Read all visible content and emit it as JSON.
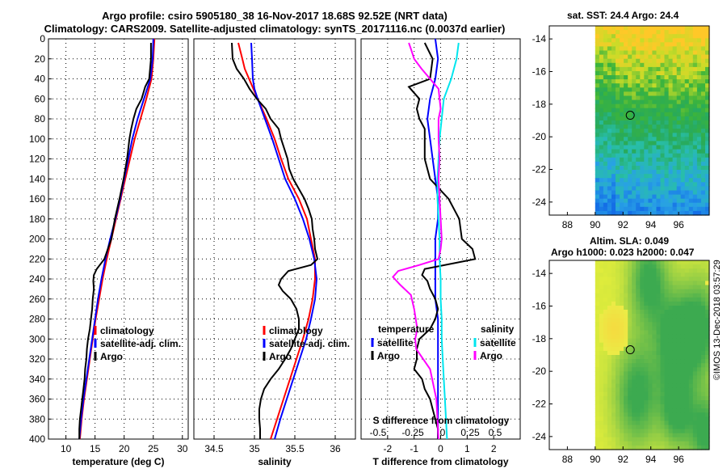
{
  "title": {
    "line1": "Argo profile: csiro 5905180_38 16-Nov-2017 18.68S 92.52E (NRT data)",
    "line2": "Climatology: CARS2009. Satellite-adjusted climatology: synTS_20171116.nc (0.0037d earlier)"
  },
  "colors": {
    "climatology": "#ff0000",
    "satellite": "#0000ff",
    "argo": "#000000",
    "argo_salinity_diff": "#ff00ff",
    "satellite_salinity_diff": "#00e5ee"
  },
  "chart_data": [
    {
      "type": "line",
      "id": "temperature",
      "xlabel": "temperature (deg C)",
      "ylabel": "",
      "xlim": [
        7,
        31
      ],
      "ylim": [
        400,
        0
      ],
      "xticks": [
        10,
        15,
        20,
        25,
        30
      ],
      "yticks": [
        0,
        20,
        40,
        60,
        80,
        100,
        120,
        140,
        160,
        180,
        200,
        220,
        240,
        260,
        280,
        300,
        320,
        340,
        360,
        380,
        400
      ],
      "grid": true,
      "legend": [
        "climatology",
        "satellite-adj. clim.",
        "Argo"
      ],
      "series": [
        {
          "name": "climatology",
          "color": "red",
          "depth": [
            0,
            20,
            40,
            60,
            80,
            100,
            120,
            140,
            160,
            180,
            200,
            220,
            240,
            260,
            280,
            300,
            320,
            340,
            360,
            380,
            400
          ],
          "values": [
            25.2,
            25.0,
            24.7,
            23.8,
            22.8,
            21.8,
            21.0,
            20.2,
            19.4,
            18.6,
            17.8,
            17.0,
            16.3,
            15.7,
            15.1,
            14.6,
            14.1,
            13.6,
            13.1,
            12.7,
            12.4
          ]
        },
        {
          "name": "satellite-adj. clim.",
          "color": "blue",
          "depth": [
            0,
            20,
            40,
            60,
            80,
            100,
            120,
            140,
            160,
            180,
            200,
            220,
            240,
            260,
            280,
            300,
            320,
            340,
            360,
            380,
            400
          ],
          "values": [
            25.0,
            24.9,
            24.5,
            23.4,
            22.3,
            21.4,
            20.7,
            20.0,
            19.3,
            18.5,
            17.6,
            16.8,
            16.1,
            15.5,
            15.0,
            14.5,
            14.0,
            13.5,
            13.0,
            12.6,
            12.3
          ]
        },
        {
          "name": "Argo",
          "color": "black",
          "depth": [
            4,
            20,
            40,
            48,
            60,
            70,
            80,
            90,
            100,
            110,
            120,
            140,
            160,
            180,
            200,
            210,
            220,
            230,
            236,
            242,
            250,
            260,
            270,
            280,
            290,
            300,
            310,
            320,
            330,
            340,
            350,
            360,
            370,
            380,
            390,
            400
          ],
          "values": [
            24.6,
            24.6,
            24.3,
            23.6,
            23.0,
            22.1,
            21.6,
            21.2,
            20.9,
            20.7,
            20.5,
            19.9,
            19.2,
            18.4,
            17.8,
            17.2,
            16.6,
            15.3,
            14.8,
            14.7,
            14.8,
            14.6,
            14.5,
            14.3,
            14.1,
            13.8,
            13.6,
            13.5,
            13.3,
            13.2,
            13.0,
            12.8,
            12.6,
            12.4,
            12.3,
            12.3
          ]
        }
      ]
    },
    {
      "type": "line",
      "id": "salinity",
      "xlabel": "salinity",
      "ylabel": "",
      "xlim": [
        34.25,
        36.25
      ],
      "ylim": [
        400,
        0
      ],
      "xticks": [
        34.5,
        35,
        35.5,
        36
      ],
      "grid": true,
      "legend": [
        "climatology",
        "satellite-adj. clim.",
        "Argo"
      ],
      "series": [
        {
          "name": "climatology",
          "color": "red",
          "depth": [
            4,
            20,
            30,
            45,
            60,
            80,
            100,
            120,
            140,
            160,
            180,
            200,
            220,
            240,
            260,
            280,
            300,
            320,
            340,
            360,
            380,
            400
          ],
          "values": [
            34.8,
            34.85,
            34.88,
            34.96,
            35.04,
            35.15,
            35.25,
            35.33,
            35.42,
            35.55,
            35.65,
            35.7,
            35.75,
            35.75,
            35.72,
            35.67,
            35.6,
            35.52,
            35.44,
            35.36,
            35.28,
            35.2
          ]
        },
        {
          "name": "satellite-adj. clim.",
          "color": "blue",
          "depth": [
            4,
            20,
            40,
            50,
            60,
            80,
            100,
            120,
            140,
            160,
            180,
            200,
            220,
            240,
            260,
            280,
            300,
            320,
            340,
            360,
            380,
            400
          ],
          "values": [
            34.96,
            34.97,
            34.98,
            35.0,
            35.04,
            35.13,
            35.22,
            35.3,
            35.38,
            35.5,
            35.6,
            35.68,
            35.74,
            35.77,
            35.75,
            35.7,
            35.64,
            35.56,
            35.48,
            35.4,
            35.32,
            35.25
          ]
        },
        {
          "name": "Argo",
          "color": "black",
          "depth": [
            4,
            20,
            30,
            40,
            50,
            60,
            70,
            80,
            90,
            100,
            110,
            120,
            130,
            140,
            150,
            160,
            170,
            180,
            190,
            200,
            210,
            220,
            226,
            232,
            240,
            246,
            252,
            260,
            270,
            280,
            290,
            300,
            310,
            320,
            330,
            340,
            350,
            360,
            370,
            380,
            390,
            400
          ],
          "values": [
            34.72,
            34.73,
            34.78,
            34.87,
            34.94,
            35.03,
            35.14,
            35.2,
            35.3,
            35.33,
            35.37,
            35.41,
            35.43,
            35.48,
            35.55,
            35.62,
            35.67,
            35.71,
            35.72,
            35.74,
            35.75,
            35.78,
            35.7,
            35.42,
            35.33,
            35.3,
            35.35,
            35.45,
            35.52,
            35.55,
            35.55,
            35.5,
            35.45,
            35.38,
            35.3,
            35.2,
            35.12,
            35.08,
            35.06,
            35.06,
            35.07,
            35.07
          ]
        }
      ]
    },
    {
      "type": "line",
      "id": "difference",
      "xlabel": "T difference from climatology",
      "ylabel": "",
      "xlim": [
        -3,
        3
      ],
      "ylim": [
        400,
        0
      ],
      "xticks": [
        -2,
        -1,
        0,
        1,
        2
      ],
      "top_axis_label": "S difference from climatology",
      "s_ticks": [
        "-0.5",
        "-0.25",
        "0",
        "0.25",
        "0.5"
      ],
      "grid": true,
      "legend_temperature": [
        "temperature",
        "satellite",
        "Argo"
      ],
      "legend_salinity": [
        "salinity",
        "satellite",
        "Argo"
      ],
      "series": [
        {
          "name": "T satellite",
          "color": "blue",
          "depth": [
            0,
            20,
            40,
            60,
            80,
            100,
            120,
            140,
            160,
            180,
            200,
            220,
            240,
            260,
            280,
            300,
            320,
            340,
            360,
            380,
            400
          ],
          "values": [
            -0.2,
            -0.1,
            -0.2,
            -0.4,
            -0.5,
            -0.4,
            -0.3,
            -0.2,
            -0.1,
            -0.1,
            -0.2,
            -0.2,
            -0.2,
            -0.2,
            -0.1,
            -0.1,
            -0.1,
            -0.1,
            -0.1,
            -0.1,
            -0.1
          ]
        },
        {
          "name": "T Argo",
          "color": "black",
          "depth": [
            4,
            20,
            40,
            48,
            60,
            70,
            80,
            90,
            100,
            110,
            120,
            140,
            160,
            180,
            200,
            210,
            220,
            230,
            236,
            242,
            250,
            260,
            270,
            280,
            290,
            300,
            310,
            320,
            330,
            340,
            350,
            360,
            370,
            380,
            390,
            400
          ],
          "values": [
            -0.6,
            -0.3,
            -0.4,
            -1.2,
            -0.8,
            -0.9,
            -0.8,
            -0.6,
            -0.6,
            -0.6,
            -0.6,
            -0.4,
            0.3,
            0.7,
            0.8,
            1.2,
            1.3,
            -0.6,
            -0.7,
            -0.5,
            -0.4,
            -0.2,
            -0.1,
            -0.2,
            -0.4,
            -0.8,
            -0.9,
            -0.9,
            -1.0,
            -0.7,
            -0.6,
            -0.4,
            -0.3,
            -0.2,
            -0.1,
            -0.1
          ]
        },
        {
          "name": "S satellite",
          "color": "cyan",
          "depth": [
            4,
            20,
            40,
            60,
            80,
            100,
            120,
            140,
            160,
            180,
            200,
            220,
            240,
            260,
            280,
            300,
            320,
            340,
            360,
            380,
            400
          ],
          "values": [
            0.17,
            0.15,
            0.1,
            0.03,
            0.01,
            -0.01,
            -0.02,
            -0.03,
            -0.03,
            -0.02,
            -0.01,
            -0.01,
            0.0,
            0.0,
            0.01,
            0.01,
            0.02,
            0.03,
            0.04,
            0.05,
            0.06
          ]
        },
        {
          "name": "S Argo",
          "color": "magenta",
          "depth": [
            4,
            10,
            20,
            30,
            40,
            50,
            60,
            70,
            80,
            100,
            120,
            140,
            160,
            180,
            200,
            210,
            220,
            226,
            232,
            238,
            246,
            256,
            270,
            290,
            300,
            310,
            330,
            360,
            380,
            400
          ],
          "values": [
            -0.3,
            -0.28,
            -0.25,
            -0.18,
            -0.1,
            -0.02,
            -0.01,
            0.0,
            -0.02,
            -0.02,
            -0.01,
            -0.02,
            -0.01,
            0.0,
            0.01,
            0.0,
            -0.02,
            -0.2,
            -0.4,
            -0.45,
            -0.38,
            -0.28,
            -0.25,
            -0.22,
            -0.24,
            -0.23,
            -0.1,
            -0.04,
            -0.03,
            -0.02
          ]
        }
      ]
    }
  ],
  "maps": {
    "sst": {
      "title": "sat. SST: 24.4 Argo: 24.4",
      "yticks": [
        "-14",
        "-16",
        "-18",
        "-20",
        "-22",
        "-24"
      ],
      "xticks": [
        "88",
        "90",
        "92",
        "94",
        "96"
      ]
    },
    "sla": {
      "title1": "Altim. SLA: 0.049",
      "title2": "Argo h1000: 0.023 h2000: 0.047",
      "yticks": [
        "-14",
        "-16",
        "-18",
        "-20",
        "-22",
        "-24"
      ],
      "xticks": [
        "88",
        "90",
        "92",
        "94",
        "96"
      ]
    },
    "profile_location": {
      "lon": 92.52,
      "lat": -18.68
    }
  },
  "footer": {
    "credit": "©IMOS 13-Dec-2018 03:57:29"
  }
}
